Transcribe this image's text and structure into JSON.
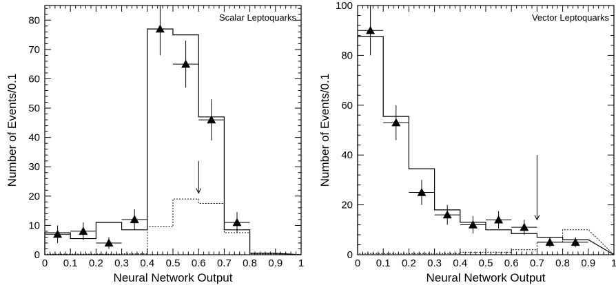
{
  "chart_data": [
    {
      "type": "histogram",
      "title": "Scalar Leptoquarks",
      "xlabel": "Neural Network Output",
      "ylabel": "Number of Events/0.1",
      "xlim": [
        0,
        1
      ],
      "ylim": [
        0,
        85
      ],
      "xticks": [
        "0",
        "0.1",
        "0.2",
        "0.3",
        "0.4",
        "0.5",
        "0.6",
        "0.7",
        "0.8",
        "0.9",
        "1"
      ],
      "yticks": [
        "0",
        "10",
        "20",
        "30",
        "40",
        "50",
        "60",
        "70",
        "80"
      ],
      "bin_edges": [
        0,
        0.1,
        0.2,
        0.3,
        0.4,
        0.5,
        0.6,
        0.7,
        0.8,
        0.9
      ],
      "series": [
        {
          "style": "solid-histogram",
          "values": [
            7.5,
            5.5,
            11,
            8.5,
            77,
            75,
            47,
            8.5,
            0.5
          ]
        },
        {
          "style": "dotted-histogram",
          "values": [
            0.2,
            0.2,
            0.2,
            0.3,
            9.5,
            19,
            17.5,
            7.5,
            0.3
          ]
        },
        {
          "style": "triangle-points",
          "x": [
            0.05,
            0.15,
            0.25,
            0.35,
            0.45,
            0.55,
            0.65,
            0.75
          ],
          "y": [
            7,
            8,
            4,
            12,
            77,
            65,
            46,
            11
          ],
          "err_low": [
            3,
            3,
            2,
            3.5,
            9,
            8,
            7,
            3.5
          ],
          "err_high": [
            3,
            3,
            2,
            3.5,
            15,
            8,
            7,
            3.5
          ]
        }
      ],
      "annotation_arrow_x": 0.6
    },
    {
      "type": "histogram",
      "title": "Vector Leptoquarks",
      "xlabel": "Neural Network Output",
      "ylabel": "Number of Events/0.1",
      "xlim": [
        0,
        1
      ],
      "ylim": [
        0,
        100
      ],
      "xticks": [
        "0",
        "0.1",
        "0.2",
        "0.3",
        "0.4",
        "0.5",
        "0.6",
        "0.7",
        "0.8",
        "0.9",
        "1"
      ],
      "yticks": [
        "0",
        "20",
        "40",
        "60",
        "80",
        "100"
      ],
      "bin_edges": [
        0,
        0.1,
        0.2,
        0.3,
        0.4,
        0.5,
        0.6,
        0.7,
        0.8,
        0.9
      ],
      "series": [
        {
          "style": "solid-histogram",
          "values": [
            87.5,
            55.5,
            34.5,
            18,
            13,
            10,
            8.5,
            7,
            6
          ]
        },
        {
          "style": "dotted-histogram",
          "values": [
            0.5,
            0.5,
            0.5,
            0.5,
            1,
            1,
            2,
            5,
            10
          ]
        },
        {
          "style": "triangle-points",
          "x": [
            0.05,
            0.15,
            0.25,
            0.35,
            0.45,
            0.55,
            0.65,
            0.75,
            0.85
          ],
          "y": [
            90,
            53,
            25,
            16,
            12,
            14,
            11,
            5,
            5
          ],
          "err_low": [
            10,
            7,
            5,
            4,
            3.5,
            3.5,
            3,
            2,
            2
          ],
          "err_high": [
            10,
            7,
            5,
            4,
            3.5,
            3.5,
            3,
            2,
            2
          ]
        }
      ],
      "annotation_arrow_x": 0.7
    }
  ]
}
